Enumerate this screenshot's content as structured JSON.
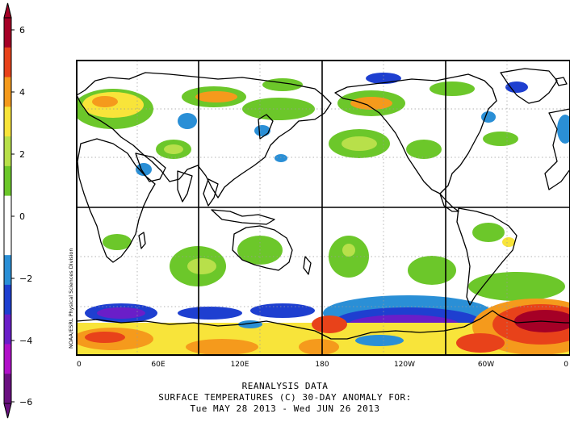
{
  "colorbar": {
    "ticks": [
      "6",
      "4",
      "2",
      "0",
      "−2",
      "−4",
      "−6"
    ],
    "colors": [
      "#a50026",
      "#e8421a",
      "#f59a1c",
      "#f8e43a",
      "#b8e04a",
      "#6cc72a",
      "#ffffff",
      "#ffffff",
      "#2a8fd6",
      "#1e3fd0",
      "#6a1ec8",
      "#b010c8",
      "#6a1080"
    ]
  },
  "map": {
    "x_ticks": [
      "0",
      "60E",
      "120E",
      "180",
      "120W",
      "60W",
      "0"
    ],
    "credit": "NOAA/ESRL Physical Sciences Division",
    "palette": {
      "neg_light": "#2a8fd6",
      "neg_mid": "#1e3fd0",
      "neg_deep": "#6a1ec8",
      "pos_1": "#6cc72a",
      "pos_2": "#b8e04a",
      "pos_3": "#f8e43a",
      "pos_4": "#f59a1c",
      "pos_5": "#e8421a",
      "pos_6": "#a50026"
    }
  },
  "caption": {
    "line1": "REANALYSIS DATA",
    "line2": "SURFACE TEMPERATURES (C)   30-DAY ANOMALY FOR:",
    "line3": "Tue MAY 28 2013 - Wed JUN 26 2013"
  }
}
